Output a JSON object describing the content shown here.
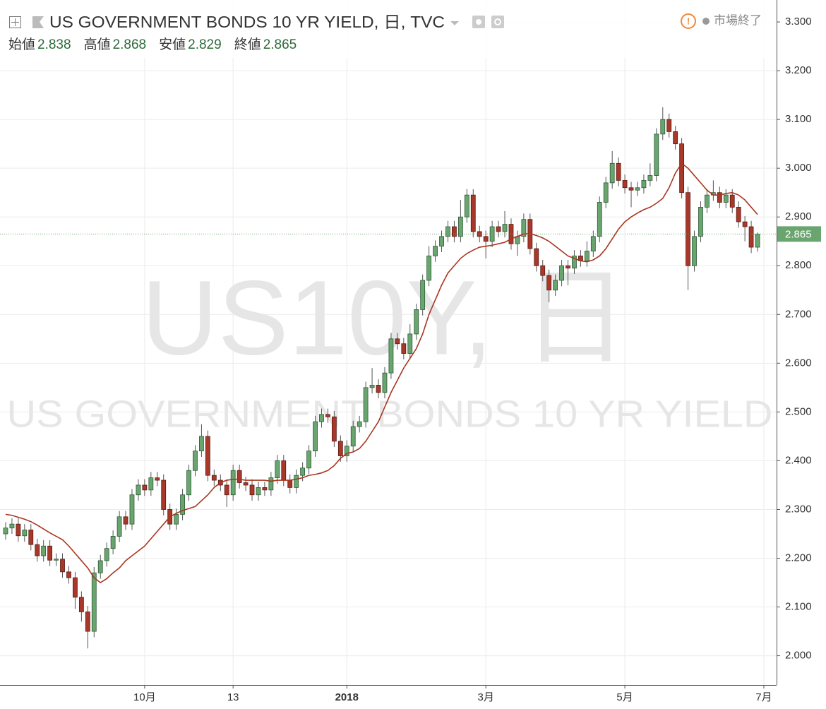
{
  "title": "US GOVERNMENT BONDS 10 YR YIELD, 日, TVC",
  "status": "市場終了",
  "legend": [
    {
      "label": "始値",
      "value": 2.838
    },
    {
      "label": "高値",
      "value": 2.868
    },
    {
      "label": "安値",
      "value": 2.829
    },
    {
      "label": "終値",
      "value": 2.865
    }
  ],
  "watermark": {
    "symbol": "US10Y, 日",
    "name": "US GOVERNMENT BONDS 10 YR YIELD"
  },
  "chart_data": {
    "type": "candlestick",
    "up_color": "#6aa56f",
    "up_border": "#2a5a35",
    "down_color": "#a8382a",
    "down_border": "#5b1a12",
    "grid": true,
    "ylim": [
      1.94,
      3.345
    ],
    "yticks": [
      {
        "value": 2.0,
        "label": "2.000"
      },
      {
        "value": 2.1,
        "label": "2.100"
      },
      {
        "value": 2.2,
        "label": "2.200"
      },
      {
        "value": 2.3,
        "label": "2.300"
      },
      {
        "value": 2.4,
        "label": "2.400"
      },
      {
        "value": 2.5,
        "label": "2.500"
      },
      {
        "value": 2.6,
        "label": "2.600"
      },
      {
        "value": 2.7,
        "label": "2.700"
      },
      {
        "value": 2.8,
        "label": "2.800"
      },
      {
        "value": 2.9,
        "label": "2.900"
      },
      {
        "value": 3.0,
        "label": "3.000"
      },
      {
        "value": 3.1,
        "label": "3.100"
      },
      {
        "value": 3.2,
        "label": "3.200"
      },
      {
        "value": 3.3,
        "label": "3.300"
      }
    ],
    "categories": [
      null,
      null,
      null,
      null,
      null,
      null,
      null,
      null,
      null,
      null,
      null,
      null,
      null,
      null,
      null,
      null,
      null,
      null,
      null,
      null,
      null,
      null,
      "10月",
      null,
      null,
      null,
      null,
      null,
      null,
      null,
      null,
      null,
      null,
      null,
      null,
      null,
      "13",
      null,
      null,
      null,
      null,
      null,
      null,
      null,
      null,
      null,
      null,
      null,
      null,
      null,
      null,
      null,
      null,
      null,
      "2018",
      null,
      null,
      null,
      null,
      null,
      null,
      null,
      null,
      null,
      null,
      null,
      null,
      null,
      null,
      null,
      null,
      null,
      null,
      null,
      null,
      null,
      "3月",
      null,
      null,
      null,
      null,
      null,
      null,
      null,
      null,
      null,
      null,
      null,
      null,
      null,
      null,
      null,
      null,
      null,
      null,
      null,
      null,
      null,
      "5月",
      null,
      null,
      null,
      null,
      null,
      null,
      null,
      null,
      null,
      null,
      null,
      null,
      null,
      null,
      null,
      null,
      null,
      null,
      null,
      null,
      null,
      "7月"
    ],
    "open": [
      2.25,
      2.262,
      2.27,
      2.246,
      2.258,
      2.228,
      2.205,
      2.225,
      2.196,
      2.198,
      2.172,
      2.16,
      2.12,
      2.09,
      2.05,
      2.17,
      2.195,
      2.22,
      2.245,
      2.285,
      2.27,
      2.33,
      2.35,
      2.34,
      2.365,
      2.36,
      2.3,
      2.27,
      2.29,
      2.33,
      2.38,
      2.42,
      2.45,
      2.37,
      2.36,
      2.35,
      2.33,
      2.38,
      2.355,
      2.35,
      2.33,
      2.345,
      2.34,
      2.365,
      2.4,
      2.36,
      2.345,
      2.37,
      2.385,
      2.42,
      2.48,
      2.495,
      2.49,
      2.44,
      2.41,
      2.43,
      2.47,
      2.48,
      2.55,
      2.555,
      2.54,
      2.58,
      2.65,
      2.64,
      2.62,
      2.66,
      2.71,
      2.77,
      2.82,
      2.84,
      2.86,
      2.88,
      2.86,
      2.9,
      2.945,
      2.87,
      2.86,
      2.85,
      2.88,
      2.87,
      2.885,
      2.845,
      2.86,
      2.895,
      2.835,
      2.8,
      2.78,
      2.75,
      2.77,
      2.8,
      2.795,
      2.82,
      2.81,
      2.83,
      2.86,
      2.93,
      2.97,
      3.01,
      2.975,
      2.96,
      2.955,
      2.96,
      2.975,
      2.985,
      3.07,
      3.1,
      3.075,
      3.05,
      2.95,
      2.8,
      2.86,
      2.92,
      2.945,
      2.95,
      2.93,
      2.945,
      2.92,
      2.89,
      2.88,
      2.838,
      null
    ],
    "high": [
      2.274,
      2.282,
      2.282,
      2.27,
      2.27,
      2.24,
      2.237,
      2.237,
      2.21,
      2.21,
      2.184,
      2.172,
      2.132,
      2.102,
      2.182,
      2.207,
      2.232,
      2.257,
      2.297,
      2.297,
      2.342,
      2.362,
      2.362,
      2.377,
      2.377,
      2.372,
      2.312,
      2.302,
      2.342,
      2.392,
      2.432,
      2.475,
      2.462,
      2.382,
      2.372,
      2.362,
      2.392,
      2.392,
      2.367,
      2.362,
      2.357,
      2.357,
      2.377,
      2.412,
      2.412,
      2.372,
      2.382,
      2.397,
      2.432,
      2.492,
      2.507,
      2.507,
      2.502,
      2.452,
      2.442,
      2.482,
      2.492,
      2.562,
      2.59,
      2.567,
      2.592,
      2.662,
      2.662,
      2.652,
      2.68,
      2.722,
      2.782,
      2.84,
      2.852,
      2.872,
      2.892,
      2.892,
      2.935,
      2.957,
      2.957,
      2.882,
      2.872,
      2.892,
      2.892,
      2.912,
      2.897,
      2.872,
      2.907,
      2.907,
      2.847,
      2.812,
      2.792,
      2.782,
      2.812,
      2.812,
      2.832,
      2.832,
      2.85,
      2.872,
      2.942,
      2.982,
      3.035,
      3.022,
      2.987,
      2.972,
      2.972,
      2.987,
      3.01,
      3.082,
      3.125,
      3.112,
      3.087,
      3.062,
      2.962,
      2.872,
      2.932,
      2.957,
      2.975,
      2.962,
      2.957,
      2.957,
      2.932,
      2.902,
      2.892,
      2.868,
      null
    ],
    "low": [
      2.238,
      2.25,
      2.234,
      2.234,
      2.216,
      2.193,
      2.193,
      2.184,
      2.184,
      2.16,
      2.148,
      2.096,
      2.07,
      2.015,
      2.038,
      2.158,
      2.183,
      2.208,
      2.233,
      2.258,
      2.258,
      2.318,
      2.328,
      2.328,
      2.348,
      2.288,
      2.258,
      2.258,
      2.278,
      2.318,
      2.368,
      2.408,
      2.358,
      2.348,
      2.338,
      2.305,
      2.318,
      2.343,
      2.338,
      2.318,
      2.318,
      2.328,
      2.328,
      2.353,
      2.348,
      2.333,
      2.333,
      2.358,
      2.373,
      2.408,
      2.468,
      2.478,
      2.428,
      2.398,
      2.398,
      2.418,
      2.458,
      2.468,
      2.538,
      2.528,
      2.528,
      2.568,
      2.628,
      2.608,
      2.608,
      2.648,
      2.698,
      2.758,
      2.808,
      2.828,
      2.848,
      2.848,
      2.848,
      2.888,
      2.858,
      2.848,
      2.815,
      2.838,
      2.858,
      2.858,
      2.833,
      2.82,
      2.848,
      2.823,
      2.788,
      2.768,
      2.725,
      2.738,
      2.758,
      2.76,
      2.783,
      2.798,
      2.798,
      2.818,
      2.848,
      2.918,
      2.958,
      2.963,
      2.948,
      2.92,
      2.943,
      2.948,
      2.963,
      2.973,
      3.058,
      3.063,
      3.038,
      2.938,
      2.75,
      2.788,
      2.848,
      2.908,
      2.933,
      2.918,
      2.918,
      2.908,
      2.878,
      2.85,
      2.826,
      2.829,
      null
    ],
    "close": [
      2.262,
      2.27,
      2.246,
      2.258,
      2.228,
      2.205,
      2.225,
      2.196,
      2.198,
      2.172,
      2.16,
      2.12,
      2.09,
      2.05,
      2.17,
      2.195,
      2.22,
      2.245,
      2.285,
      2.27,
      2.33,
      2.35,
      2.34,
      2.365,
      2.36,
      2.3,
      2.27,
      2.29,
      2.33,
      2.38,
      2.42,
      2.45,
      2.37,
      2.36,
      2.35,
      2.33,
      2.38,
      2.355,
      2.35,
      2.33,
      2.345,
      2.34,
      2.365,
      2.4,
      2.36,
      2.345,
      2.37,
      2.385,
      2.42,
      2.48,
      2.495,
      2.49,
      2.44,
      2.41,
      2.43,
      2.47,
      2.48,
      2.55,
      2.555,
      2.54,
      2.58,
      2.65,
      2.64,
      2.62,
      2.66,
      2.71,
      2.77,
      2.82,
      2.84,
      2.86,
      2.88,
      2.86,
      2.9,
      2.945,
      2.87,
      2.86,
      2.85,
      2.88,
      2.87,
      2.885,
      2.845,
      2.86,
      2.895,
      2.835,
      2.8,
      2.78,
      2.75,
      2.77,
      2.8,
      2.795,
      2.82,
      2.81,
      2.83,
      2.86,
      2.93,
      2.97,
      3.01,
      2.975,
      2.96,
      2.955,
      2.96,
      2.975,
      2.985,
      3.07,
      3.1,
      3.075,
      3.05,
      2.95,
      2.8,
      2.86,
      2.92,
      2.945,
      2.95,
      2.93,
      2.945,
      2.92,
      2.89,
      2.88,
      2.838,
      2.865,
      null
    ],
    "ma": {
      "color": "#a8361f",
      "values": [
        2.29,
        2.288,
        2.284,
        2.28,
        2.275,
        2.268,
        2.26,
        2.252,
        2.245,
        2.238,
        2.225,
        2.21,
        2.195,
        2.18,
        2.16,
        2.15,
        2.158,
        2.17,
        2.18,
        2.195,
        2.205,
        2.215,
        2.225,
        2.24,
        2.255,
        2.27,
        2.285,
        2.292,
        2.298,
        2.302,
        2.306,
        2.318,
        2.33,
        2.345,
        2.355,
        2.36,
        2.362,
        2.362,
        2.36,
        2.36,
        2.36,
        2.36,
        2.358,
        2.36,
        2.36,
        2.36,
        2.362,
        2.365,
        2.37,
        2.372,
        2.375,
        2.38,
        2.39,
        2.405,
        2.415,
        2.418,
        2.425,
        2.44,
        2.46,
        2.48,
        2.51,
        2.54,
        2.565,
        2.59,
        2.61,
        2.63,
        2.66,
        2.7,
        2.73,
        2.76,
        2.785,
        2.8,
        2.815,
        2.825,
        2.832,
        2.838,
        2.84,
        2.842,
        2.845,
        2.848,
        2.855,
        2.86,
        2.865,
        2.866,
        2.862,
        2.857,
        2.85,
        2.84,
        2.83,
        2.82,
        2.815,
        2.81,
        2.808,
        2.812,
        2.82,
        2.835,
        2.855,
        2.875,
        2.89,
        2.9,
        2.908,
        2.915,
        2.92,
        2.928,
        2.938,
        2.96,
        2.99,
        3.01,
        3.0,
        2.985,
        2.97,
        2.955,
        2.945,
        2.945,
        2.948,
        2.95,
        2.945,
        2.935,
        2.92,
        2.905,
        null
      ]
    }
  }
}
